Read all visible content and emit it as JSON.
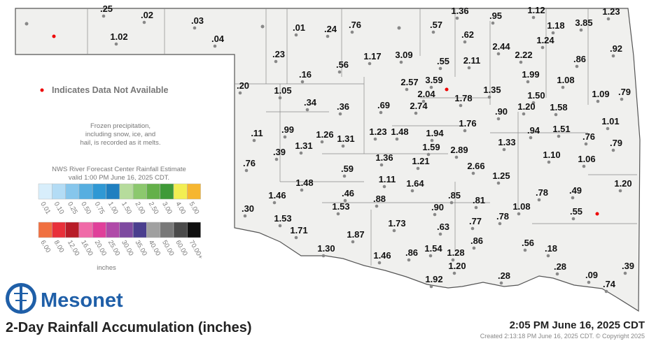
{
  "map": {
    "title": "2-Day Rainfall Accumulation (inches)",
    "timestamp": "2:05 PM June 16, 2025 CDT",
    "created": "Created 2:13:18 PM June 16, 2025 CDT. © Copyright 2025",
    "logo": "Mesonet",
    "not_available_note": "Indicates Data Not Available",
    "frozen_note": [
      "Frozen precipitation,",
      "including snow, ice, and",
      "hail, is recorded as it melts."
    ],
    "legend": {
      "title": [
        "NWS River Forecast Center Rainfall Estimate",
        "valid 1:00 PM June 16, 2025 CDT."
      ],
      "rows": [
        {
          "colors": [
            "#d8eefb",
            "#b3dcf5",
            "#86c6ec",
            "#56aee0",
            "#2f98d4",
            "#1f7fc0",
            "#b6dc9c",
            "#8cc86e",
            "#64b04a",
            "#3f9a38",
            "#f2ee52",
            "#f6b630"
          ],
          "labels": [
            "0.01",
            "0.10",
            "0.25",
            "0.50",
            "0.75",
            "1.00",
            "1.50",
            "2.00",
            "2.50",
            "3.00",
            "4.00",
            "5.00"
          ]
        },
        {
          "colors": [
            "#f07040",
            "#e8303a",
            "#b81c28",
            "#f06aa8",
            "#e0409a",
            "#b04aa8",
            "#7e4aa0",
            "#4a3e8e",
            "#a0a0a0",
            "#787878",
            "#4a4a4a",
            "#101010"
          ],
          "labels": [
            "6.00",
            "8.00",
            "12.00",
            "16.00",
            "20.00",
            "25.00",
            "30.00",
            "35.00",
            "40.00",
            "50.00",
            "60.00",
            "70.00+"
          ]
        }
      ],
      "units": "inches"
    },
    "stations": [
      ".25",
      ".02",
      ".03",
      "1.02",
      ".04",
      ".01",
      ".24",
      ".76",
      ".57",
      "1.36",
      ".95",
      "1.12",
      "1.23",
      "1.18",
      "3.85",
      ".62",
      ".23",
      ".56",
      "1.17",
      "3.09",
      ".55",
      "2.11",
      "2.44",
      "2.22",
      "1.24",
      ".86",
      ".92",
      "1.99",
      "1.08",
      ".16",
      ".20",
      "1.05",
      "2.57",
      "3.59",
      "2.04",
      "1.78",
      "1.35",
      "1.50",
      "1.09",
      ".79",
      ".34",
      ".36",
      ".69",
      "2.74",
      "1.20",
      "1.58",
      ".90",
      "1.01",
      ".11",
      ".99",
      "1.26",
      "1.31",
      "1.23",
      "1.48",
      "1.94",
      "1.76",
      ".94",
      "1.51",
      ".76",
      ".79",
      "1.31",
      ".39",
      "1.59",
      "2.89",
      "1.33",
      "1.10",
      "1.06",
      "1.36",
      "1.21",
      ".76",
      ".59",
      "2.66",
      "1.25",
      "1.11",
      "1.48",
      "1.64",
      "1.20",
      ".49",
      ".78",
      "1.46",
      ".46",
      ".88",
      ".85",
      ".81",
      "1.53",
      ".90",
      "1.08",
      ".55",
      ".30",
      "1.53",
      ".78",
      ".77",
      "1.71",
      "1.73",
      ".63",
      "1.87",
      ".86",
      ".56",
      ".18",
      "1.30",
      "1.46",
      ".86",
      "1.54",
      "1.28",
      "1.20",
      ".28",
      ".39",
      ".09",
      ".74",
      ".28",
      "1.92"
    ]
  }
}
